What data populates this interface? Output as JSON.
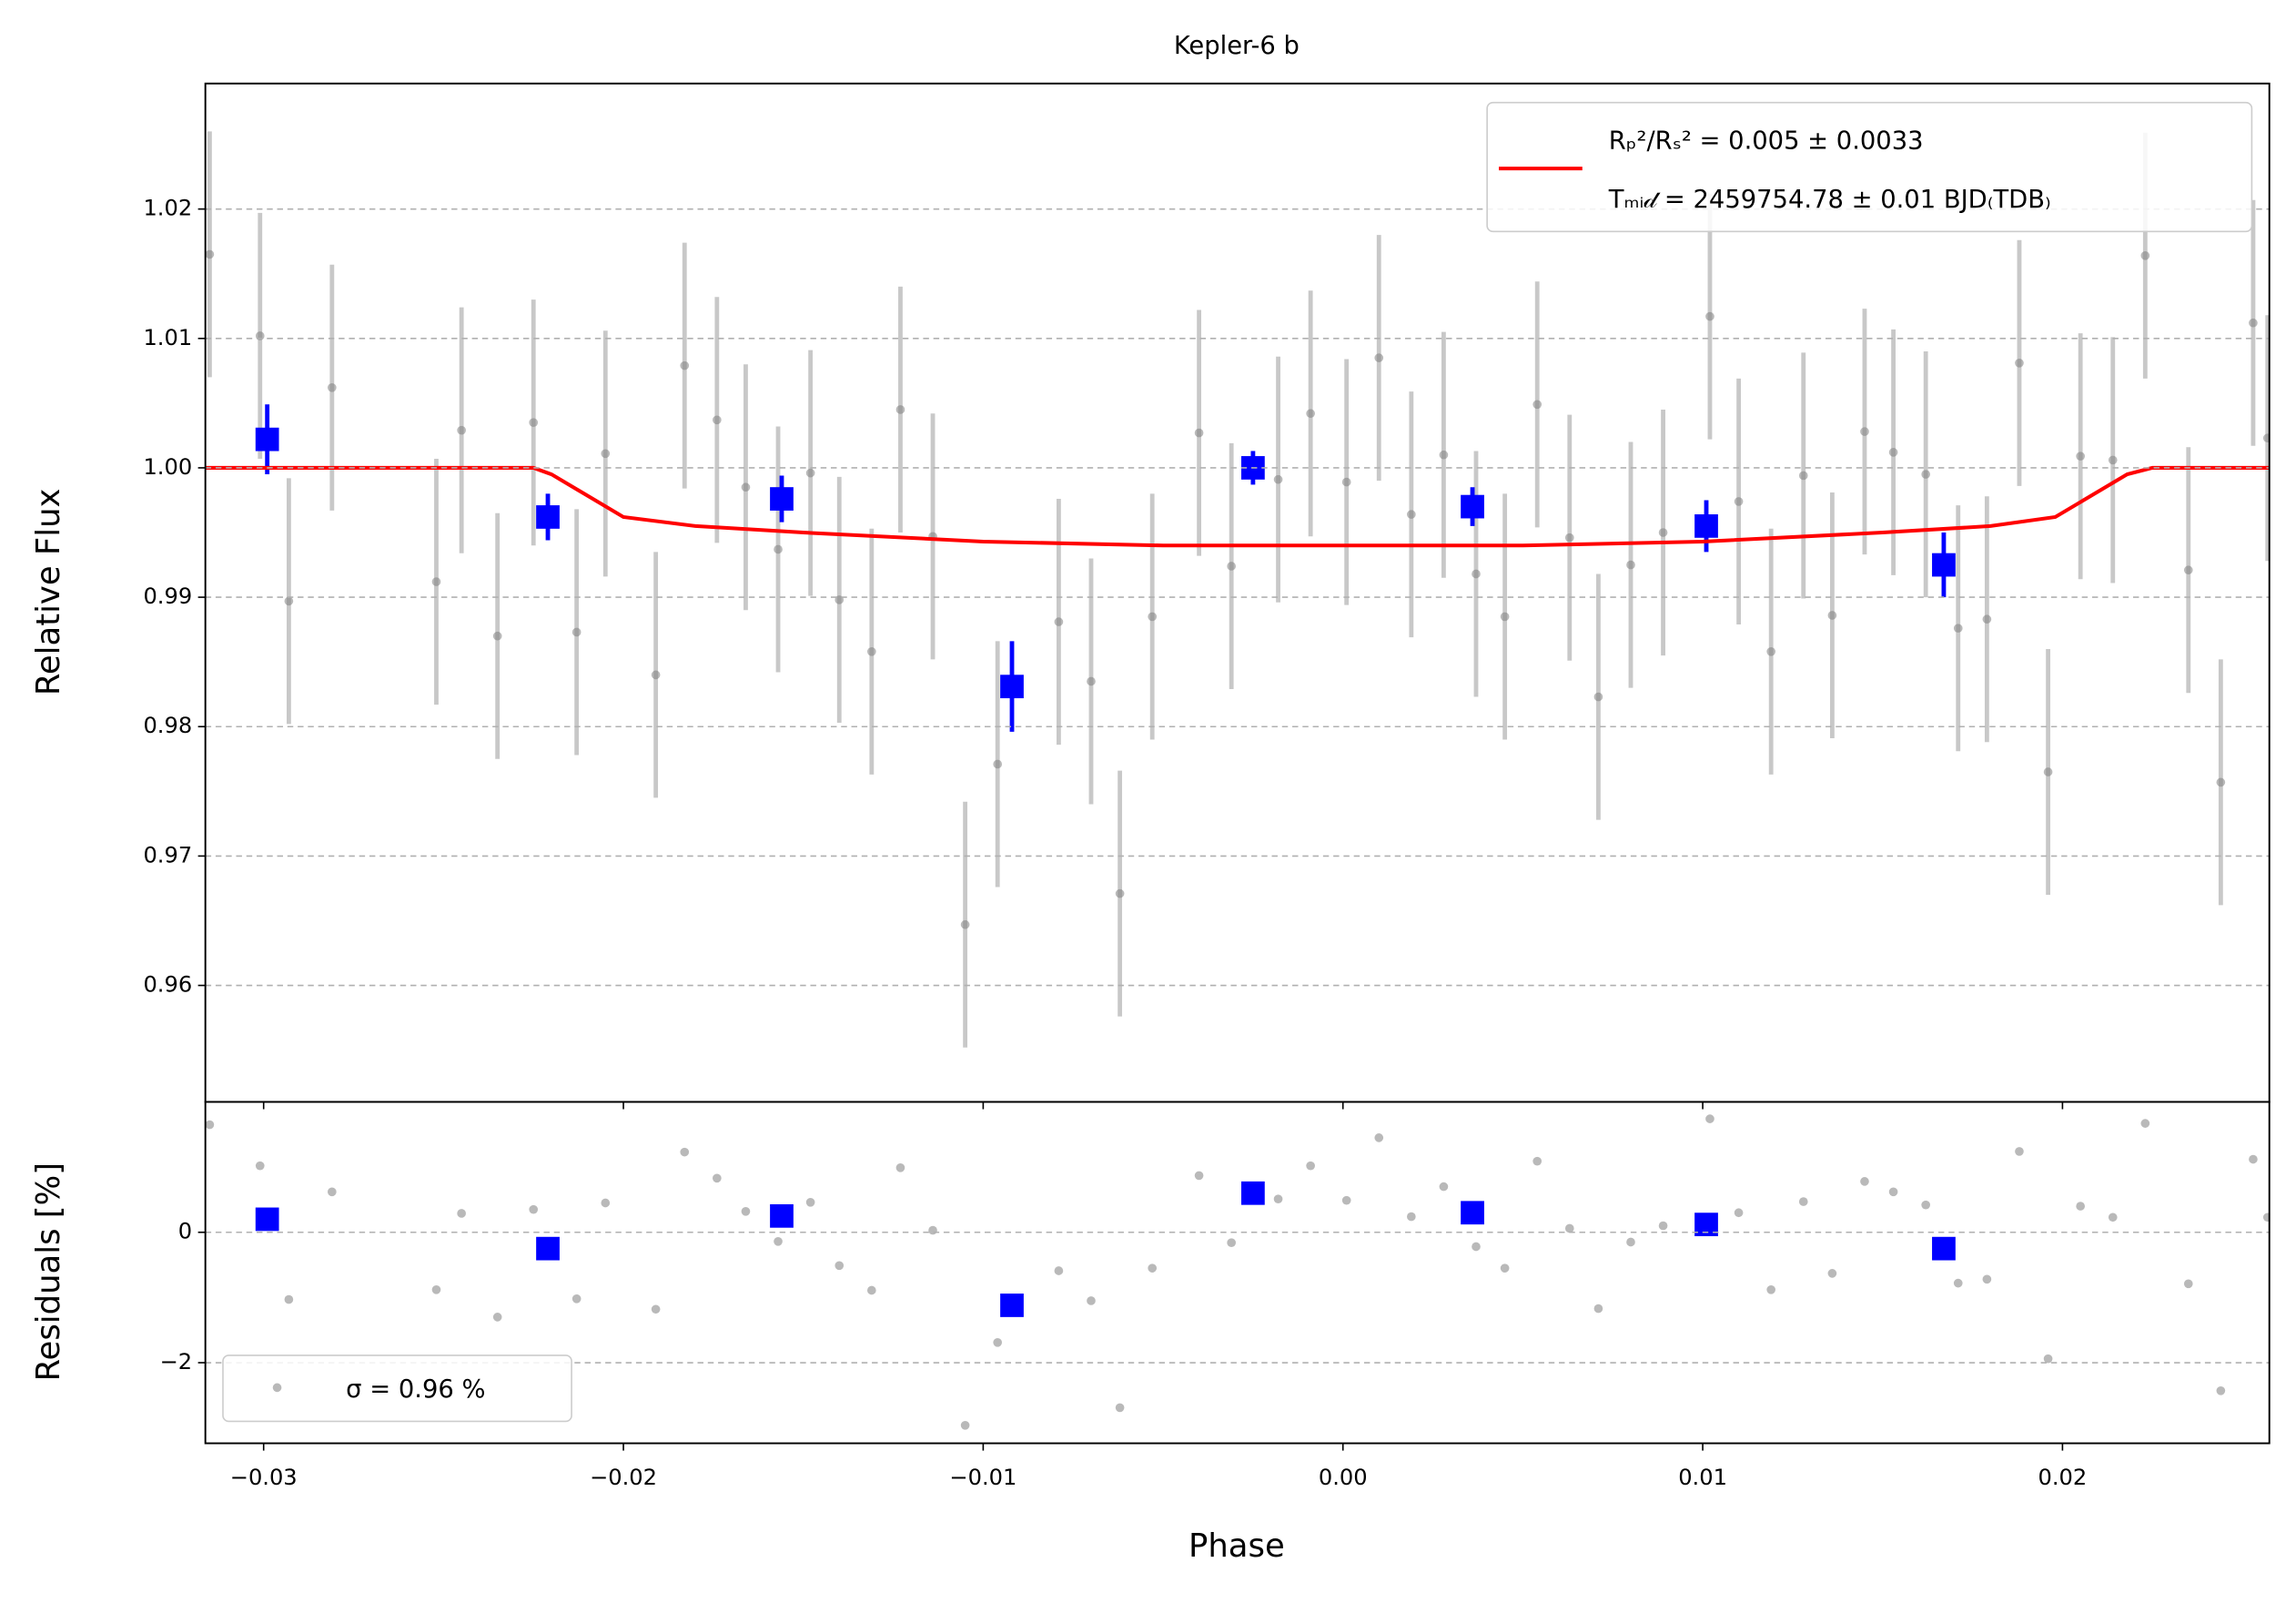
{
  "chart_data": [
    {
      "type": "scatter",
      "title": "Kepler-6 b",
      "ylabel": "Relative Flux",
      "xlim": [
        -0.03162,
        0.02575
      ],
      "ylim": [
        0.951,
        1.0297
      ],
      "yticks": [
        0.96,
        0.97,
        0.98,
        0.99,
        {
          "value": 1,
          "label": "1.00"
        },
        1.01,
        1.02
      ],
      "grid": true,
      "legend": "upper right",
      "series": [
        {
          "color": "#808080",
          "error": 0.0095,
          "x": [
            -0.0315,
            -0.0301,
            -0.0293,
            -0.0281,
            -0.0252,
            -0.0245,
            -0.0235,
            -0.0225,
            -0.0213,
            -0.0205,
            -0.0191,
            -0.0183,
            -0.0174,
            -0.0166,
            -0.0157,
            -0.0148,
            -0.014,
            -0.0131,
            -0.0123,
            -0.0114,
            -0.0105,
            -0.0096,
            -0.0079,
            -0.007,
            -0.0062,
            -0.0053,
            -0.004,
            -0.0031,
            -0.0018,
            -0.0009,
            0.0001,
            0.001,
            0.0019,
            0.0028,
            0.0037,
            0.0045,
            0.0054,
            0.0063,
            0.0071,
            0.008,
            0.0089,
            0.0102,
            0.011,
            0.0119,
            0.0128,
            0.0136,
            0.0145,
            0.0153,
            0.0162,
            0.0171,
            0.0179,
            0.0188,
            0.0196,
            0.0205,
            0.0214,
            0.0223,
            0.0235,
            0.0244,
            0.0253,
            0.0257
          ],
          "values": [
            1.0165,
            1.0102,
            0.9897,
            1.0062,
            0.9912,
            1.0029,
            0.987,
            1.0035,
            0.9873,
            1.0011,
            0.984,
            1.0079,
            1.0037,
            0.9985,
            0.9937,
            0.9996,
            0.9898,
            0.9858,
            1.0045,
            0.9947,
            0.9647,
            0.9771,
            0.9881,
            0.9835,
            0.9671,
            0.9885,
            1.0027,
            0.9924,
            0.9991,
            1.0042,
            0.9989,
            1.0085,
            0.9964,
            1.001,
            0.9918,
            0.9885,
            1.0049,
            0.9946,
            0.9823,
            0.9925,
            0.995,
            1.0117,
            0.9974,
            0.9858,
            0.9994,
            0.9886,
            1.0028,
            1.0012,
            0.9995,
            0.9876,
            0.9883,
            1.0081,
            0.9765,
            1.0009,
            1.0006,
            1.0164,
            0.9921,
            0.9757,
            1.0112,
            1.0023
          ]
        },
        {
          "color": "#0000ff",
          "x": [
            -0.0299,
            -0.0221,
            -0.0156,
            -0.0092,
            -0.0025,
            0.0036,
            0.0101,
            0.0167
          ],
          "values": [
            1.0022,
            0.9962,
            0.9976,
            0.9831,
            1.0,
            0.997,
            0.9955,
            0.9925
          ],
          "errors": [
            0.0027,
            0.0018,
            0.0018,
            0.0035,
            0.0013,
            0.0015,
            0.002,
            0.0025
          ]
        },
        {
          "line": true,
          "color": "#ff0000",
          "name": [
            "Rₚ²/Rₛ² = 0.005 ± 0.0033",
            "Tₘᵢ𝒹 = 2459754.78 ± 0.01 BJD₍TDB₎"
          ],
          "x": [
            -0.03162,
            -0.0225,
            -0.022,
            -0.02,
            -0.018,
            -0.015,
            -0.01,
            -0.005,
            0,
            0.005,
            0.01,
            0.015,
            0.018,
            0.0198,
            0.0218,
            0.0225,
            0.02575
          ],
          "values": [
            1.0,
            1.0,
            0.9995,
            0.9962,
            0.9955,
            0.995,
            0.9943,
            0.994,
            0.994,
            0.994,
            0.9943,
            0.995,
            0.9955,
            0.9962,
            0.9995,
            1.0,
            1.0
          ]
        }
      ]
    },
    {
      "type": "scatter",
      "xlabel": "Phase",
      "ylabel": "Residuals [%]",
      "xlim": [
        -0.03162,
        0.02575
      ],
      "ylim": [
        -3.236,
        2.0
      ],
      "xticks": [
        {
          "value": -0.03,
          "label": "−0.03"
        },
        {
          "value": -0.02,
          "label": "−0.02"
        },
        {
          "value": -0.01,
          "label": "−0.01"
        },
        {
          "value": 0,
          "label": "0.00"
        },
        {
          "value": 0.01,
          "label": "0.01"
        },
        {
          "value": 0.02,
          "label": "0.02"
        }
      ],
      "yticks": [
        {
          "value": -2,
          "label": "−2"
        },
        0
      ],
      "grid": true,
      "legend": "lower left",
      "series": [
        {
          "name": "σ = 0.96 %",
          "color": "#808080",
          "x": [
            -0.0315,
            -0.0301,
            -0.0293,
            -0.0281,
            -0.0252,
            -0.0245,
            -0.0235,
            -0.0225,
            -0.0213,
            -0.0205,
            -0.0191,
            -0.0183,
            -0.0174,
            -0.0166,
            -0.0157,
            -0.0148,
            -0.014,
            -0.0131,
            -0.0123,
            -0.0114,
            -0.0105,
            -0.0096,
            -0.0079,
            -0.007,
            -0.0062,
            -0.0053,
            -0.004,
            -0.0031,
            -0.0018,
            -0.0009,
            0.0001,
            0.001,
            0.0019,
            0.0028,
            0.0037,
            0.0045,
            0.0054,
            0.0063,
            0.0071,
            0.008,
            0.0089,
            0.0102,
            0.011,
            0.0119,
            0.0128,
            0.0136,
            0.0145,
            0.0153,
            0.0162,
            0.0171,
            0.0179,
            0.0188,
            0.0196,
            0.0205,
            0.0214,
            0.0223,
            0.0235,
            0.0244,
            0.0253,
            0.0257
          ],
          "values": [
            1.65,
            1.02,
            -1.03,
            0.62,
            -0.88,
            0.29,
            -1.3,
            0.35,
            -1.02,
            0.45,
            -1.18,
            1.23,
            0.83,
            0.32,
            -0.14,
            0.46,
            -0.51,
            -0.89,
            0.99,
            0.03,
            -2.96,
            -1.69,
            -0.59,
            -1.05,
            -2.69,
            -0.55,
            0.87,
            -0.16,
            0.51,
            1.02,
            0.49,
            1.45,
            0.24,
            0.7,
            -0.22,
            -0.55,
            1.09,
            0.06,
            -1.17,
            -0.15,
            0.1,
            1.74,
            0.3,
            -0.88,
            0.47,
            -0.63,
            0.78,
            0.62,
            0.42,
            -0.78,
            -0.72,
            1.24,
            -1.94,
            0.4,
            0.23,
            1.67,
            -0.79,
            -2.43,
            1.12,
            0.23
          ]
        },
        {
          "color": "#0000ff",
          "x": [
            -0.0299,
            -0.0221,
            -0.0156,
            -0.0092,
            -0.0025,
            0.0036,
            0.0101,
            0.0167
          ],
          "values": [
            0.2,
            -0.25,
            0.25,
            -1.12,
            0.6,
            0.3,
            0.12,
            -0.25
          ]
        }
      ]
    }
  ]
}
